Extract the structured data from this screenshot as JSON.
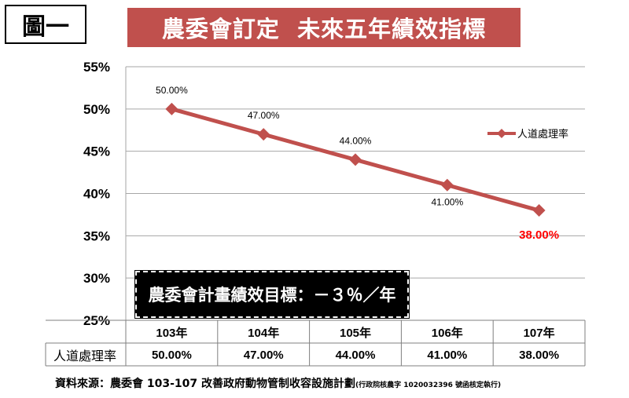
{
  "figure_label": "圖一",
  "title": "農委會訂定  未來五年績效指標",
  "callout": "農委會計畫績效目標：－３％／年",
  "source": {
    "main": "資料來源：農委會 103-107 改善政府動物管制收容設施計劃",
    "note": "(行政院核農字 1020032396 號函核定執行)"
  },
  "colors": {
    "series": "#c0504d",
    "banner": "#c0504d",
    "highlight": "#ff0000",
    "grid": "#a6a6a6"
  },
  "chart_data": {
    "type": "line",
    "categories": [
      "103年",
      "104年",
      "105年",
      "106年",
      "107年"
    ],
    "series": [
      {
        "name": "人道處理率",
        "values": [
          50.0,
          47.0,
          44.0,
          41.0,
          38.0
        ],
        "labels": [
          "50.00%",
          "47.00%",
          "44.00%",
          "41.00%",
          "38.00%"
        ]
      }
    ],
    "ylim": [
      25,
      55
    ],
    "yticks": [
      "25%",
      "30%",
      "35%",
      "40%",
      "45%",
      "50%",
      "55%"
    ],
    "ytick_values": [
      25,
      30,
      35,
      40,
      45,
      50,
      55
    ],
    "grid": "horizontal",
    "legend": "right",
    "marker": "diamond",
    "highlighted_label_index": 4,
    "data_table": {
      "row_header": "人道處理率",
      "cells": [
        "50.00%",
        "47.00%",
        "44.00%",
        "41.00%",
        "38.00%"
      ]
    }
  }
}
